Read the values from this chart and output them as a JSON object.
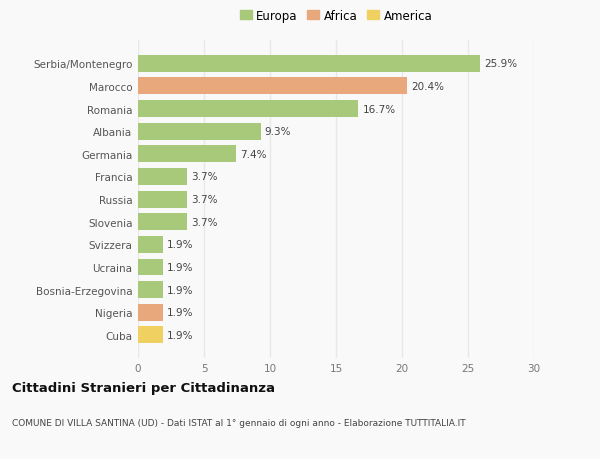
{
  "categories": [
    "Cuba",
    "Nigeria",
    "Bosnia-Erzegovina",
    "Ucraina",
    "Svizzera",
    "Slovenia",
    "Russia",
    "Francia",
    "Germania",
    "Albania",
    "Romania",
    "Marocco",
    "Serbia/Montenegro"
  ],
  "values": [
    1.9,
    1.9,
    1.9,
    1.9,
    1.9,
    3.7,
    3.7,
    3.7,
    7.4,
    9.3,
    16.7,
    20.4,
    25.9
  ],
  "continents": [
    "America",
    "Africa",
    "Europa",
    "Europa",
    "Europa",
    "Europa",
    "Europa",
    "Europa",
    "Europa",
    "Europa",
    "Europa",
    "Africa",
    "Europa"
  ],
  "colors": {
    "Europa": "#a8c87a",
    "Africa": "#e8a87c",
    "America": "#f0d060"
  },
  "legend_items": [
    "Europa",
    "Africa",
    "America"
  ],
  "legend_colors": [
    "#a8c87a",
    "#e8a87c",
    "#f0d060"
  ],
  "xlim": [
    0,
    30
  ],
  "xticks": [
    0,
    5,
    10,
    15,
    20,
    25,
    30
  ],
  "title": "Cittadini Stranieri per Cittadinanza",
  "subtitle": "COMUNE DI VILLA SANTINA (UD) - Dati ISTAT al 1° gennaio di ogni anno - Elaborazione TUTTITALIA.IT",
  "background_color": "#f9f9f9",
  "grid_color": "#e8e8e8",
  "bar_height": 0.75
}
